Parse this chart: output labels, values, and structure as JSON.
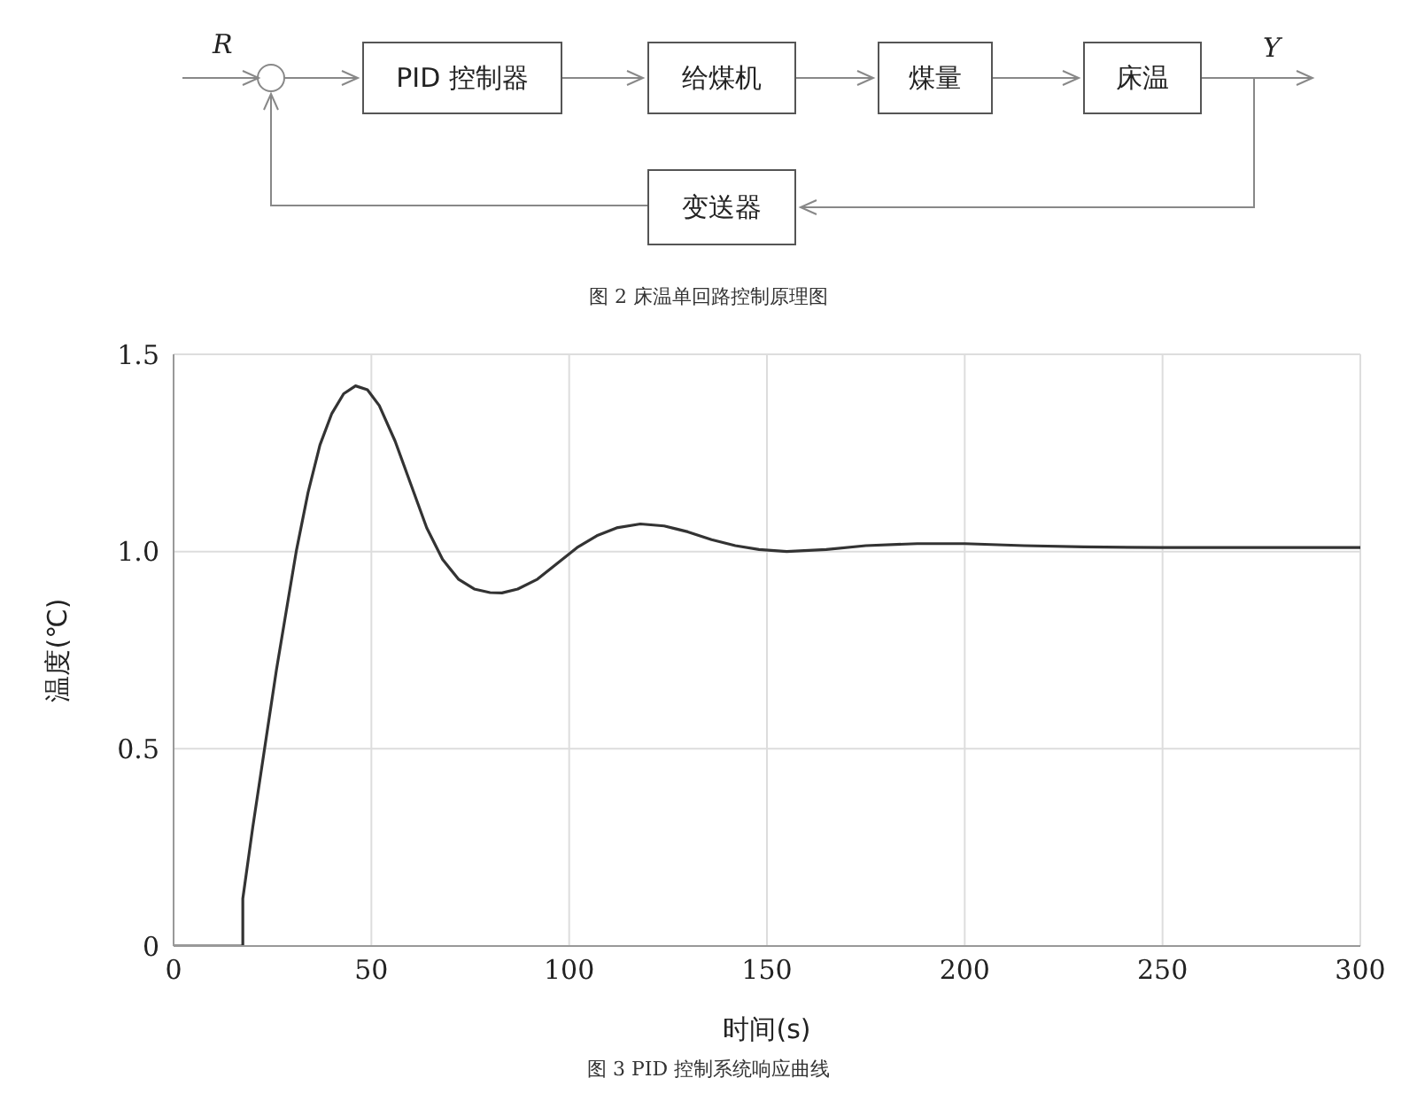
{
  "chart_data": [
    {
      "type": "other",
      "title": "图 2 床温单回路控制原理图",
      "annotations": [
        "R",
        "PID 控制器",
        "给煤机",
        "煤量",
        "床温",
        "Y",
        "变送器"
      ]
    },
    {
      "type": "line",
      "title": "图 3 PID 控制系统响应曲线",
      "xlabel": "时间(s)",
      "ylabel": "温度(℃)",
      "xlim": [
        0,
        300
      ],
      "xticks": [
        0,
        50,
        100,
        150,
        200,
        250,
        300
      ],
      "ylim": [
        0,
        1.5
      ],
      "yticks": [
        0,
        0.5,
        {
          "value": 1,
          "label": "1.0"
        },
        1.5
      ],
      "grid": true,
      "marker": "none",
      "line_style": "solid",
      "x": [
        0,
        17.5,
        17.5,
        20,
        23,
        26,
        29,
        31,
        34,
        37,
        40,
        43,
        46,
        49,
        52,
        56,
        60,
        64,
        68,
        72,
        76,
        80,
        83,
        87,
        92,
        97,
        102,
        107,
        112,
        118,
        124,
        130,
        136,
        142,
        148,
        155,
        165,
        175,
        188,
        200,
        215,
        230,
        250,
        270,
        300
      ],
      "series": [
        {
          "color": "#333333",
          "values": [
            0,
            0,
            0.12,
            0.3,
            0.5,
            0.7,
            0.88,
            1.0,
            1.15,
            1.27,
            1.35,
            1.4,
            1.42,
            1.41,
            1.37,
            1.28,
            1.17,
            1.06,
            0.98,
            0.93,
            0.905,
            0.896,
            0.895,
            0.905,
            0.93,
            0.97,
            1.01,
            1.04,
            1.06,
            1.07,
            1.065,
            1.05,
            1.03,
            1.015,
            1.005,
            1.0,
            1.005,
            1.015,
            1.02,
            1.02,
            1.015,
            1.012,
            1.01,
            1.01,
            1.01
          ]
        }
      ]
    }
  ]
}
